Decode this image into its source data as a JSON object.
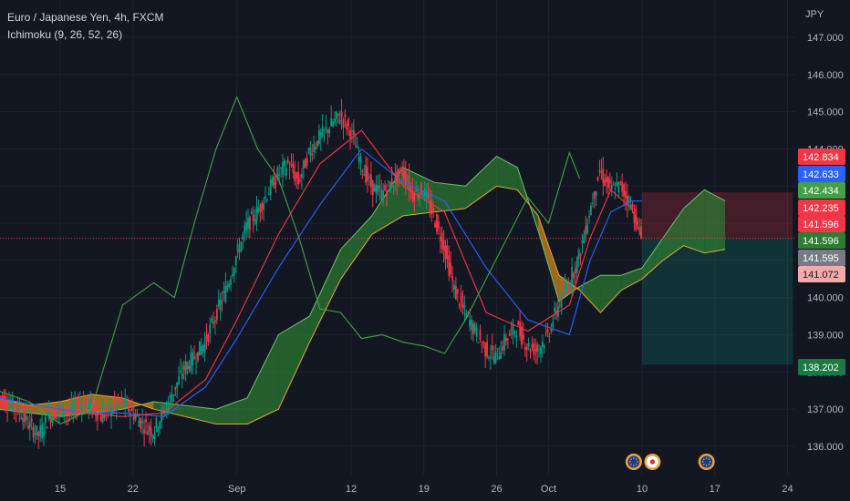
{
  "chart_data": {
    "type": "line",
    "title": "Euro / Japanese Yen, 4h, FXCM",
    "indicator": "Ichimoku (9, 26, 52, 26)",
    "currency": "JPY",
    "y_ticks": [
      "147.000",
      "146.000",
      "145.000",
      "144.000",
      "143.000",
      "142.000",
      "141.000",
      "140.000",
      "139.000",
      "138.000",
      "137.000",
      "136.000"
    ],
    "x_ticks": [
      {
        "label": "15",
        "day": 15
      },
      {
        "label": "22",
        "day": 22
      },
      {
        "label": "Sep",
        "day": 32
      },
      {
        "label": "12",
        "day": 43
      },
      {
        "label": "19",
        "day": 50
      },
      {
        "label": "26",
        "day": 57
      },
      {
        "label": "Oct",
        "day": 62
      },
      {
        "label": "10",
        "day": 71
      },
      {
        "label": "17",
        "day": 78
      },
      {
        "label": "24",
        "day": 85
      }
    ],
    "ylim": [
      135.6,
      147.6
    ],
    "xlim_days": [
      9.0,
      95.0
    ],
    "price_tags": [
      {
        "value": 142.834,
        "label": "142.834",
        "color": "#f23645"
      },
      {
        "value": 142.633,
        "label": "142.633",
        "color": "#2962ff"
      },
      {
        "value": 142.434,
        "label": "142.434",
        "color": "#43a047"
      },
      {
        "value": 142.235,
        "label": "142.235",
        "color": "#f23645"
      },
      {
        "value": 141.596,
        "label": "141.596",
        "color": "#f23645"
      },
      {
        "value": 141.596,
        "label": "141.596",
        "color": "#2e7d32"
      },
      {
        "value": 141.595,
        "label": "141.595",
        "color": "#787b86"
      },
      {
        "value": 141.072,
        "label": "141.072",
        "color": "#f7a8a8"
      },
      {
        "value": 138.202,
        "label": "138.202",
        "color": "#1b7a43"
      }
    ],
    "position": {
      "entry": 141.595,
      "stop": 142.834,
      "target": 138.202,
      "from_day": 71,
      "to_day": 85.5
    },
    "price_series": {
      "days": [
        9,
        10,
        11,
        12,
        13,
        14,
        15,
        16,
        17,
        18,
        19,
        20,
        21,
        22,
        23,
        24,
        25,
        26,
        27,
        28,
        29,
        30,
        31,
        32,
        33,
        34,
        35,
        36,
        37,
        38,
        39,
        40,
        41,
        42,
        43,
        44,
        45,
        46,
        47,
        48,
        49,
        50,
        51,
        52,
        53,
        54,
        55,
        56,
        57,
        58,
        59,
        60,
        61,
        62,
        63,
        64,
        65,
        66,
        67,
        68,
        69,
        70,
        71
      ],
      "close": [
        137.4,
        137.2,
        137.0,
        136.6,
        136.3,
        136.8,
        137.0,
        136.9,
        137.2,
        137.1,
        136.8,
        137.0,
        137.2,
        136.9,
        136.6,
        136.4,
        136.9,
        137.5,
        138.1,
        138.4,
        138.8,
        139.5,
        140.2,
        141.1,
        141.9,
        142.3,
        142.8,
        143.3,
        143.6,
        143.1,
        143.9,
        144.3,
        144.6,
        144.9,
        144.5,
        143.6,
        143.0,
        142.8,
        143.1,
        143.4,
        142.8,
        142.9,
        142.2,
        141.4,
        140.2,
        139.6,
        139.1,
        138.6,
        138.4,
        138.9,
        139.2,
        138.7,
        138.6,
        139.0,
        139.8,
        140.4,
        141.1,
        142.3,
        143.4,
        142.9,
        143.0,
        142.5,
        141.6
      ]
    },
    "series": [
      {
        "name": "Conversion Line",
        "color": "#2962ff",
        "days": [
          9,
          13,
          17,
          21,
          25,
          29,
          32,
          36,
          40,
          44,
          48,
          52,
          56,
          60,
          64,
          66,
          68,
          70,
          71
        ],
        "values": [
          137.3,
          137.1,
          136.9,
          136.9,
          136.8,
          137.6,
          138.9,
          140.8,
          142.5,
          144.0,
          143.1,
          142.6,
          140.8,
          139.4,
          139.0,
          141.0,
          142.3,
          142.6,
          142.6
        ]
      },
      {
        "name": "Base Line",
        "color": "#f23645",
        "days": [
          9,
          13,
          17,
          21,
          25,
          29,
          32,
          36,
          40,
          44,
          48,
          52,
          56,
          60,
          64,
          66,
          68,
          70,
          71
        ],
        "values": [
          137.2,
          137.0,
          136.9,
          136.8,
          136.9,
          137.8,
          139.4,
          141.7,
          143.6,
          144.5,
          143.0,
          142.3,
          139.6,
          139.1,
          139.8,
          141.6,
          142.9,
          142.4,
          141.6
        ]
      },
      {
        "name": "Lagging Span",
        "color": "#43a047",
        "days": [
          9,
          12,
          15,
          18,
          21,
          24,
          26,
          28,
          30,
          32,
          34,
          36,
          38,
          40,
          42,
          44,
          46,
          48,
          50,
          52,
          54,
          56,
          58,
          60,
          62,
          64,
          65
        ],
        "values": [
          137.5,
          137.2,
          136.6,
          137.0,
          139.8,
          140.4,
          140.0,
          142.1,
          144.0,
          145.4,
          144.0,
          143.2,
          141.6,
          139.7,
          139.6,
          138.9,
          139.0,
          138.8,
          138.7,
          138.5,
          139.4,
          140.5,
          141.6,
          142.7,
          142.0,
          143.9,
          143.2
        ]
      }
    ],
    "cloud": {
      "days": [
        9,
        12,
        15,
        18,
        21,
        24,
        27,
        30,
        33,
        36,
        39,
        42,
        45,
        48,
        51,
        54,
        57,
        59,
        61,
        63,
        65,
        67,
        69,
        71,
        73,
        75,
        77,
        79
      ],
      "span_a": [
        137.0,
        136.9,
        136.8,
        136.9,
        137.0,
        137.2,
        137.1,
        137.0,
        137.3,
        139.0,
        139.5,
        141.3,
        142.2,
        143.5,
        143.1,
        143.0,
        143.8,
        143.5,
        141.8,
        139.9,
        140.3,
        140.6,
        140.6,
        140.8,
        141.6,
        142.4,
        142.9,
        142.6
      ],
      "span_b": [
        137.3,
        137.1,
        137.2,
        137.4,
        137.3,
        137.0,
        136.8,
        136.6,
        136.6,
        137.0,
        138.8,
        140.5,
        141.7,
        142.2,
        142.3,
        142.4,
        143.0,
        142.9,
        142.2,
        140.6,
        140.2,
        139.6,
        140.2,
        140.5,
        141.0,
        141.4,
        141.2,
        141.3
      ],
      "bull_color": "#2e7d32",
      "bear_color": "#c9871c"
    }
  },
  "event_icons": [
    {
      "name": "eu-flag-icon-1",
      "day": 70.2
    },
    {
      "name": "japan-flag-icon",
      "day": 72.0
    },
    {
      "name": "eu-flag-icon-2",
      "day": 77.2
    }
  ]
}
